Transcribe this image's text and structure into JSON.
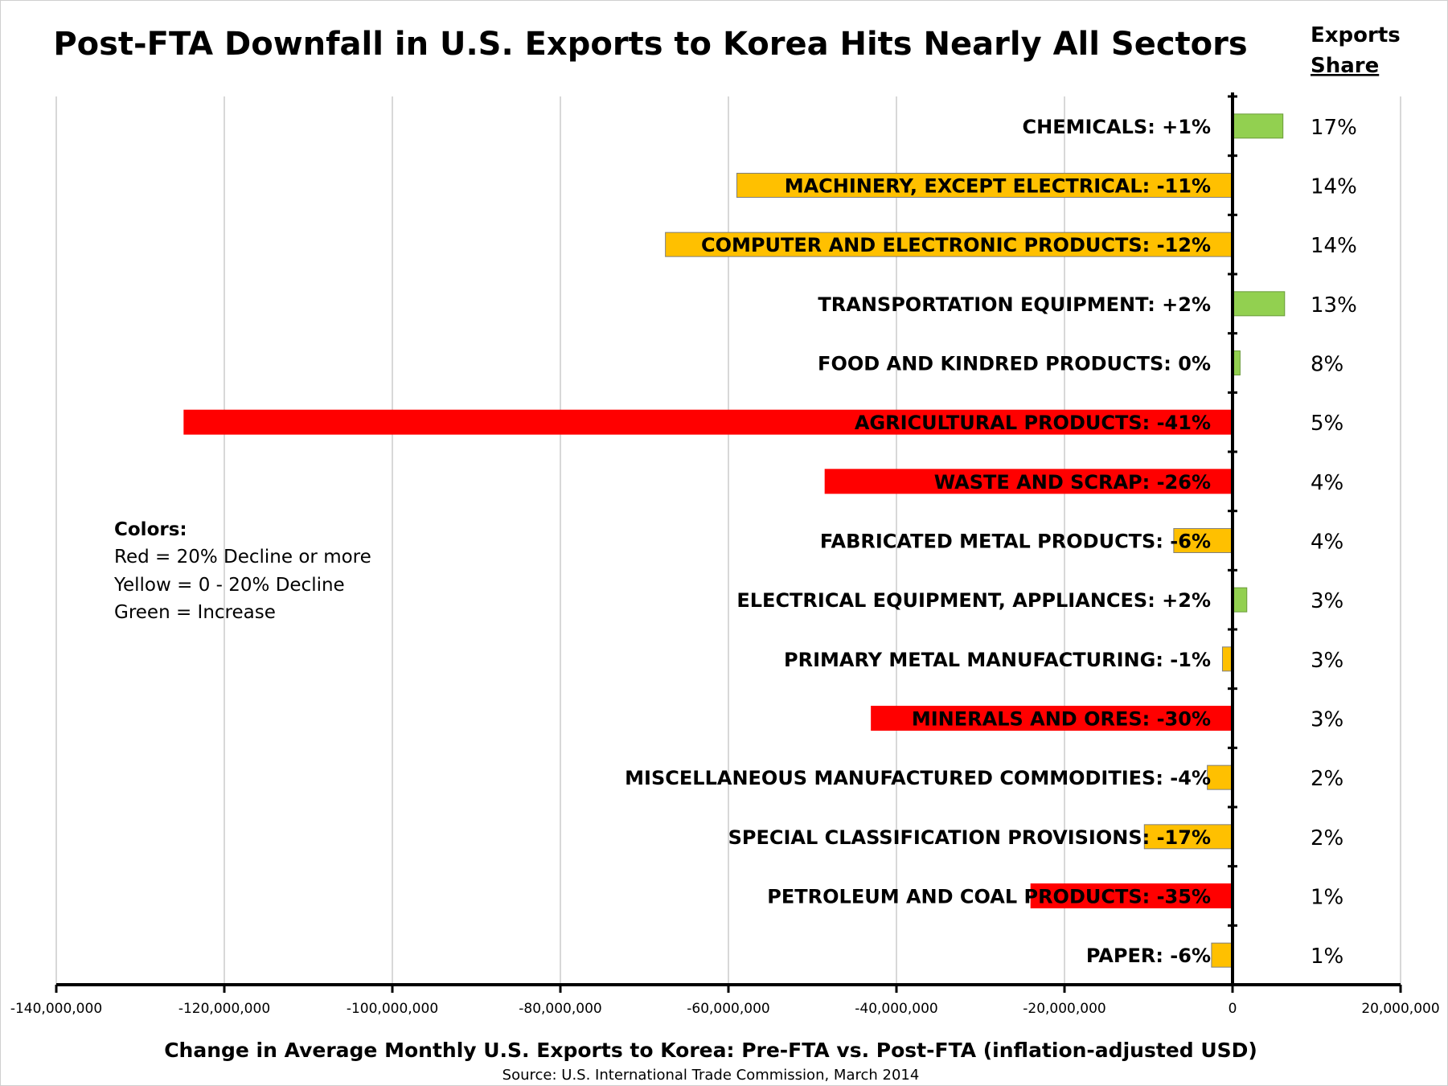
{
  "chart_data": {
    "type": "bar",
    "orientation": "horizontal",
    "title": "Post-FTA Downfall in U.S. Exports to Korea Hits Nearly All Sectors",
    "xlabel": "Change in Average Monthly U.S. Exports to Korea: Pre-FTA vs. Post-FTA (inflation-adjusted USD)",
    "source": "Source: U.S. International Trade Commission, March 2014",
    "xlim": [
      -140000000,
      20000000
    ],
    "xticks": [
      -140000000,
      -120000000,
      -100000000,
      -80000000,
      -60000000,
      -40000000,
      -20000000,
      0,
      20000000
    ],
    "xtick_labels": [
      "-140,000,000",
      "-120,000,000",
      "-100,000,000",
      "-80,000,000",
      "-60,000,000",
      "-40,000,000",
      "-20,000,000",
      "0",
      "20,000,000"
    ],
    "grid": "vertical",
    "share_header_line1": "Exports",
    "share_header_line2": "Share",
    "colors": {
      "red": "#ff0000",
      "yellow": "#ffc000",
      "green": "#92d050"
    },
    "categories": [
      {
        "label": "CHEMICALS:  +1%",
        "value": 6000000,
        "color": "green",
        "share": "17%"
      },
      {
        "label": "MACHINERY, EXCEPT ELECTRICAL:  -11%",
        "value": -59000000,
        "color": "yellow",
        "share": "14%"
      },
      {
        "label": "COMPUTER AND ELECTRONIC PRODUCTS:  -12%",
        "value": -67500000,
        "color": "yellow",
        "share": "14%"
      },
      {
        "label": "TRANSPORTATION EQUIPMENT:  +2%",
        "value": 6200000,
        "color": "green",
        "share": "13%"
      },
      {
        "label": "FOOD AND KINDRED PRODUCTS:  0%",
        "value": 900000,
        "color": "green",
        "share": "8%"
      },
      {
        "label": "AGRICULTURAL PRODUCTS:  -41%",
        "value": -124800000,
        "color": "red",
        "share": "5%"
      },
      {
        "label": "WASTE AND SCRAP:  -26%",
        "value": -48500000,
        "color": "red",
        "share": "4%"
      },
      {
        "label": "FABRICATED METAL PRODUCTS:  -6%",
        "value": -7000000,
        "color": "yellow",
        "share": "4%"
      },
      {
        "label": "ELECTRICAL EQUIPMENT, APPLIANCES:  +2%",
        "value": 1700000,
        "color": "green",
        "share": "3%"
      },
      {
        "label": "PRIMARY METAL MANUFACTURING:  -1%",
        "value": -1200000,
        "color": "yellow",
        "share": "3%"
      },
      {
        "label": "MINERALS AND ORES:  -30%",
        "value": -43000000,
        "color": "red",
        "share": "3%"
      },
      {
        "label": "MISCELLANEOUS MANUFACTURED COMMODITIES:  -4%",
        "value": -3000000,
        "color": "yellow",
        "share": "2%"
      },
      {
        "label": "SPECIAL CLASSIFICATION PROVISIONS:  -17%",
        "value": -10500000,
        "color": "yellow",
        "share": "2%"
      },
      {
        "label": "PETROLEUM AND COAL PRODUCTS:  -35%",
        "value": -24000000,
        "color": "red",
        "share": "1%"
      },
      {
        "label": "PAPER:  -6%",
        "value": -2500000,
        "color": "yellow",
        "share": "1%"
      }
    ],
    "legend": {
      "title": "Colors:",
      "items": [
        "Red = 20% Decline or more",
        "Yellow = 0 - 20% Decline",
        "Green = Increase"
      ]
    }
  }
}
